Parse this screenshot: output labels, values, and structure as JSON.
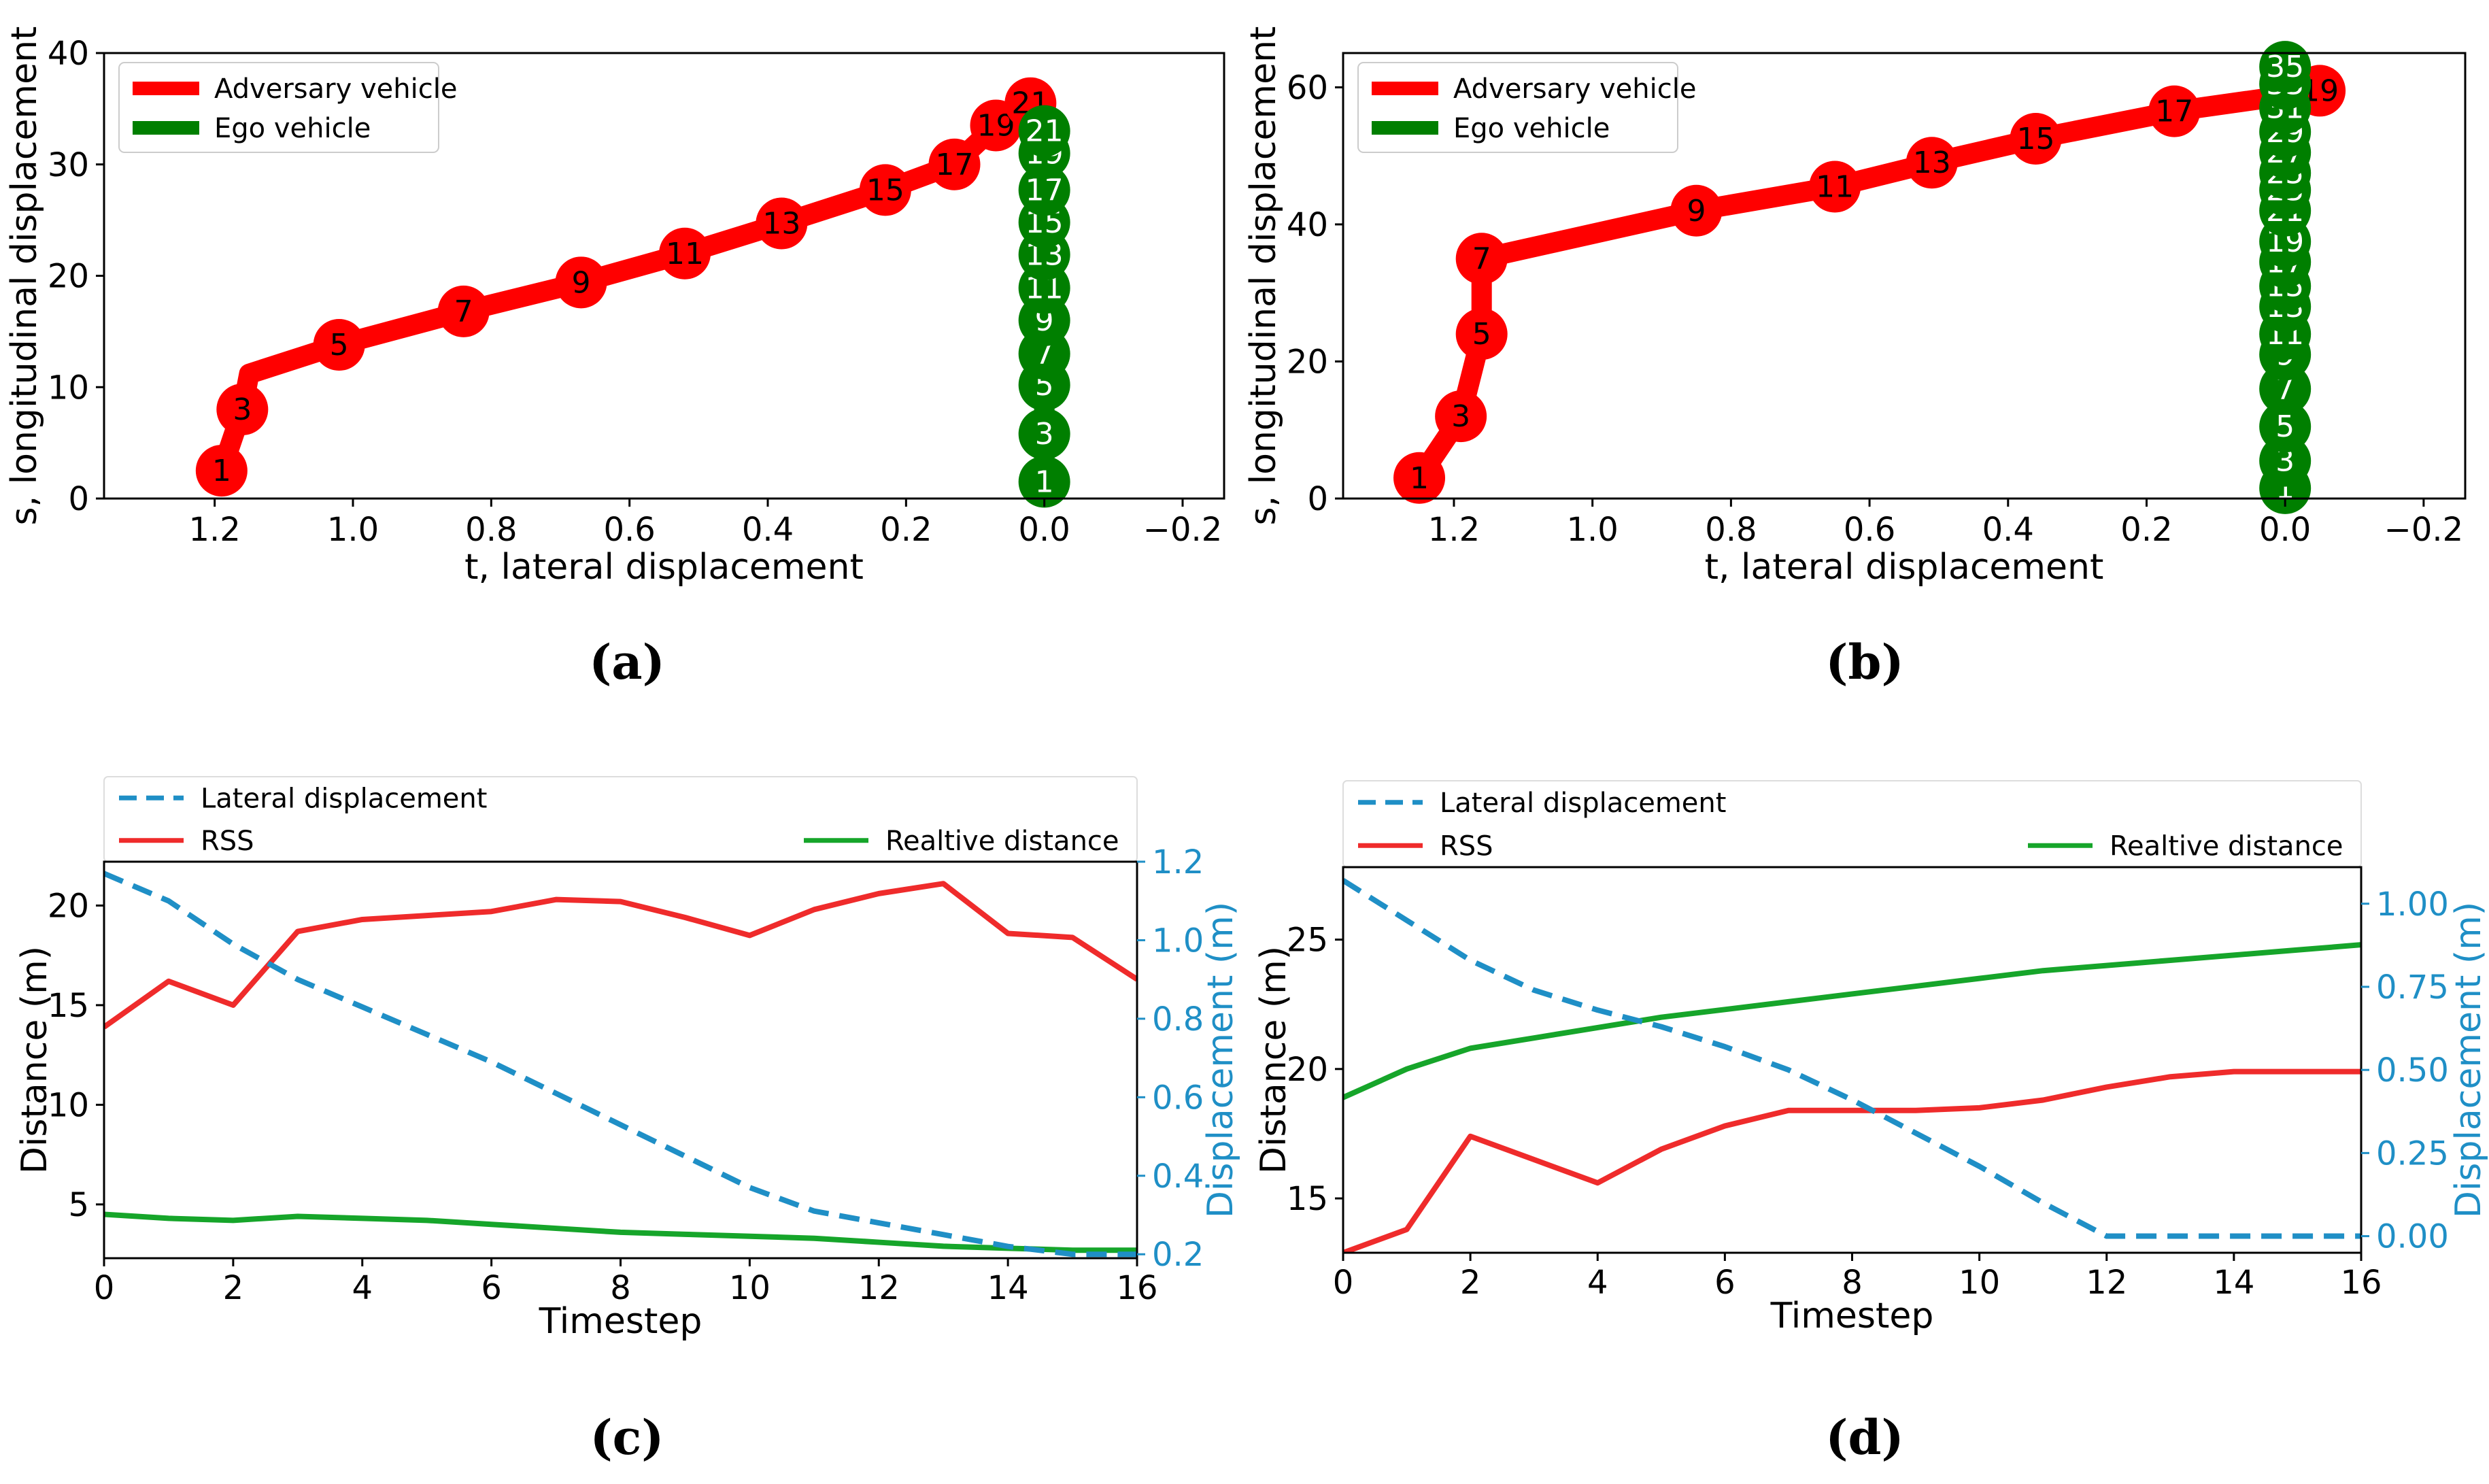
{
  "colors": {
    "adversary": "#ff0000",
    "ego": "#007f00",
    "lateral": "#1f8fc6",
    "rss": "#ef2b2b",
    "relative": "#16a52a",
    "axis": "#000000",
    "twin_axis": "#1f8fc6"
  },
  "chart_data": [
    {
      "panel_label": "(a)",
      "type": "scatter",
      "xlabel": "t, lateral displacement",
      "ylabel": "s, longitudinal displacement",
      "xlim": [
        1.36,
        -0.26
      ],
      "ylim": [
        0,
        40
      ],
      "xticks": [
        1.2,
        1.0,
        0.8,
        0.6,
        0.4,
        0.2,
        0.0,
        -0.2
      ],
      "xtick_labels": [
        "1.2",
        "1.0",
        "0.8",
        "0.6",
        "0.4",
        "0.2",
        "0.0",
        "−0.2"
      ],
      "yticks": [
        0,
        10,
        20,
        30,
        40
      ],
      "ytick_labels": [
        "0",
        "10",
        "20",
        "30",
        "40"
      ],
      "legend": [
        "Adversary vehicle",
        "Ego vehicle"
      ],
      "legend_position": "upper-left",
      "series": [
        {
          "name": "Adversary vehicle",
          "path": [
            [
              1.19,
              2.5
            ],
            [
              1.16,
              8.0
            ],
            [
              1.15,
              11.2
            ],
            [
              1.02,
              13.8
            ],
            [
              0.84,
              16.8
            ],
            [
              0.67,
              19.4
            ],
            [
              0.52,
              22.0
            ],
            [
              0.38,
              24.7
            ],
            [
              0.23,
              27.7
            ],
            [
              0.13,
              30.0
            ],
            [
              0.07,
              33.5
            ],
            [
              0.02,
              35.5
            ]
          ],
          "markers": [
            {
              "label": "1",
              "t": 1.19,
              "s": 2.5
            },
            {
              "label": "3",
              "t": 1.16,
              "s": 8.0
            },
            {
              "label": "5",
              "t": 1.02,
              "s": 13.8
            },
            {
              "label": "7",
              "t": 0.84,
              "s": 16.8
            },
            {
              "label": "9",
              "t": 0.67,
              "s": 19.4
            },
            {
              "label": "11",
              "t": 0.52,
              "s": 22.0
            },
            {
              "label": "13",
              "t": 0.38,
              "s": 24.7
            },
            {
              "label": "15",
              "t": 0.23,
              "s": 27.7
            },
            {
              "label": "17",
              "t": 0.13,
              "s": 30.0
            },
            {
              "label": "19",
              "t": 0.07,
              "s": 33.5
            },
            {
              "label": "21",
              "t": 0.02,
              "s": 35.5
            }
          ]
        },
        {
          "name": "Ego vehicle",
          "path": [
            [
              0.0,
              1.5
            ],
            [
              0.0,
              33.0
            ]
          ],
          "markers": [
            {
              "label": "1",
              "t": 0.0,
              "s": 1.5
            },
            {
              "label": "3",
              "t": 0.0,
              "s": 5.8
            },
            {
              "label": "5",
              "t": 0.0,
              "s": 10.2
            },
            {
              "label": "7",
              "t": 0.0,
              "s": 13.0
            },
            {
              "label": "9",
              "t": 0.0,
              "s": 16.0
            },
            {
              "label": "11",
              "t": 0.0,
              "s": 18.9
            },
            {
              "label": "13",
              "t": 0.0,
              "s": 21.9
            },
            {
              "label": "15",
              "t": 0.0,
              "s": 24.8
            },
            {
              "label": "17",
              "t": 0.0,
              "s": 27.7
            },
            {
              "label": "19",
              "t": 0.0,
              "s": 31.0
            },
            {
              "label": "21",
              "t": 0.0,
              "s": 33.0
            }
          ]
        }
      ]
    },
    {
      "panel_label": "(b)",
      "type": "scatter",
      "xlabel": "t, lateral displacement",
      "ylabel": "s, longitudinal displacement",
      "xlim": [
        1.36,
        -0.26
      ],
      "ylim": [
        0,
        65
      ],
      "xticks": [
        1.2,
        1.0,
        0.8,
        0.6,
        0.4,
        0.2,
        0.0,
        -0.2
      ],
      "xtick_labels": [
        "1.2",
        "1.0",
        "0.8",
        "0.6",
        "0.4",
        "0.2",
        "0.0",
        "−0.2"
      ],
      "yticks": [
        0,
        20,
        40,
        60
      ],
      "ytick_labels": [
        "0",
        "20",
        "40",
        "60"
      ],
      "legend": [
        "Adversary vehicle",
        "Ego vehicle"
      ],
      "legend_position": "upper-left",
      "series": [
        {
          "name": "Adversary vehicle",
          "path": [
            [
              1.25,
              3.0
            ],
            [
              1.19,
              12.0
            ],
            [
              1.16,
              24.0
            ],
            [
              1.16,
              35.0
            ],
            [
              0.85,
              42.0
            ],
            [
              0.65,
              45.5
            ],
            [
              0.51,
              49.0
            ],
            [
              0.36,
              52.5
            ],
            [
              0.16,
              56.5
            ],
            [
              -0.05,
              59.5
            ]
          ],
          "markers": [
            {
              "label": "1",
              "t": 1.25,
              "s": 3.0
            },
            {
              "label": "3",
              "t": 1.19,
              "s": 12.0
            },
            {
              "label": "5",
              "t": 1.16,
              "s": 24.0
            },
            {
              "label": "7",
              "t": 1.16,
              "s": 35.0
            },
            {
              "label": "9",
              "t": 0.85,
              "s": 42.0
            },
            {
              "label": "11",
              "t": 0.65,
              "s": 45.5
            },
            {
              "label": "13",
              "t": 0.51,
              "s": 49.0
            },
            {
              "label": "15",
              "t": 0.36,
              "s": 52.5
            },
            {
              "label": "17",
              "t": 0.16,
              "s": 56.5
            },
            {
              "label": "19",
              "t": -0.05,
              "s": 59.5
            }
          ]
        },
        {
          "name": "Ego vehicle",
          "path": [
            [
              0.0,
              1.5
            ],
            [
              0.0,
              63.0
            ]
          ],
          "markers": [
            {
              "label": "1",
              "t": 0.0,
              "s": 1.5
            },
            {
              "label": "3",
              "t": 0.0,
              "s": 5.5
            },
            {
              "label": "5",
              "t": 0.0,
              "s": 10.5
            },
            {
              "label": "7",
              "t": 0.0,
              "s": 16.0
            },
            {
              "label": "9",
              "t": 0.0,
              "s": 21.0
            },
            {
              "label": "11",
              "t": 0.0,
              "s": 24.0
            },
            {
              "label": "13",
              "t": 0.0,
              "s": 28.0
            },
            {
              "label": "15",
              "t": 0.0,
              "s": 31.0
            },
            {
              "label": "17",
              "t": 0.0,
              "s": 34.5
            },
            {
              "label": "19",
              "t": 0.0,
              "s": 37.5
            },
            {
              "label": "21",
              "t": 0.0,
              "s": 42.0
            },
            {
              "label": "23",
              "t": 0.0,
              "s": 45.0
            },
            {
              "label": "25",
              "t": 0.0,
              "s": 47.5
            },
            {
              "label": "27",
              "t": 0.0,
              "s": 50.5
            },
            {
              "label": "29",
              "t": 0.0,
              "s": 53.5
            },
            {
              "label": "31",
              "t": 0.0,
              "s": 57.0
            },
            {
              "label": "33",
              "t": 0.0,
              "s": 60.5
            },
            {
              "label": "35",
              "t": 0.0,
              "s": 63.0
            }
          ]
        }
      ]
    },
    {
      "panel_label": "(c)",
      "type": "line",
      "xlabel": "Timestep",
      "ylabel": "Distance (m)",
      "y2label": "Displacement (m)",
      "xlim": [
        0,
        16
      ],
      "ylim": [
        2.3,
        22.2
      ],
      "y2lim": [
        0.19,
        1.2
      ],
      "xticks": [
        0,
        2,
        4,
        6,
        8,
        10,
        12,
        14,
        16
      ],
      "xtick_labels": [
        "0",
        "2",
        "4",
        "6",
        "8",
        "10",
        "12",
        "14",
        "16"
      ],
      "yticks": [
        5,
        10,
        15,
        20
      ],
      "ytick_labels": [
        "5",
        "10",
        "15",
        "20"
      ],
      "y2ticks": [
        0.2,
        0.4,
        0.6,
        0.8,
        1.0,
        1.2
      ],
      "y2tick_labels": [
        "0.2",
        "0.4",
        "0.6",
        "0.8",
        "1.0",
        "1.2"
      ],
      "legend": [
        "Lateral displacement",
        "RSS",
        "Realtive distance"
      ],
      "x": [
        0,
        1,
        2,
        3,
        4,
        5,
        6,
        7,
        8,
        9,
        10,
        11,
        12,
        13,
        14,
        15,
        16
      ],
      "series": [
        {
          "name": "Lateral displacement",
          "axis": "right",
          "style": "dashed",
          "values": [
            1.17,
            1.1,
            0.99,
            0.9,
            0.83,
            0.76,
            0.69,
            0.61,
            0.53,
            0.45,
            0.37,
            0.31,
            0.28,
            0.25,
            0.22,
            0.2,
            0.2
          ]
        },
        {
          "name": "RSS",
          "axis": "left",
          "style": "solid",
          "values": [
            13.9,
            16.2,
            15.0,
            18.7,
            19.3,
            19.5,
            19.7,
            20.3,
            20.2,
            19.4,
            18.5,
            19.8,
            20.6,
            21.1,
            18.6,
            18.4,
            16.3
          ]
        },
        {
          "name": "Realtive distance",
          "axis": "left",
          "style": "solid",
          "values": [
            4.5,
            4.3,
            4.2,
            4.4,
            4.3,
            4.2,
            4.0,
            3.8,
            3.6,
            3.5,
            3.4,
            3.3,
            3.1,
            2.9,
            2.8,
            2.7,
            2.7
          ]
        }
      ]
    },
    {
      "panel_label": "(d)",
      "type": "line",
      "xlabel": "Timestep",
      "ylabel": "Distance (m)",
      "y2label": "Displacement (m)",
      "xlim": [
        0,
        16
      ],
      "ylim": [
        12.9,
        27.8
      ],
      "y2lim": [
        -0.05,
        1.11
      ],
      "xticks": [
        0,
        2,
        4,
        6,
        8,
        10,
        12,
        14,
        16
      ],
      "xtick_labels": [
        "0",
        "2",
        "4",
        "6",
        "8",
        "10",
        "12",
        "14",
        "16"
      ],
      "yticks": [
        15,
        20,
        25
      ],
      "ytick_labels": [
        "15",
        "20",
        "25"
      ],
      "y2ticks": [
        0.0,
        0.25,
        0.5,
        0.75,
        1.0
      ],
      "y2tick_labels": [
        "0.00",
        "0.25",
        "0.50",
        "0.75",
        "1.00"
      ],
      "legend": [
        "Lateral displacement",
        "RSS",
        "Realtive distance"
      ],
      "x": [
        0,
        1,
        2,
        3,
        4,
        5,
        6,
        7,
        8,
        9,
        10,
        11,
        12,
        13,
        14,
        15,
        16
      ],
      "series": [
        {
          "name": "Lateral displacement",
          "axis": "right",
          "style": "dashed",
          "values": [
            1.07,
            0.95,
            0.83,
            0.74,
            0.68,
            0.63,
            0.57,
            0.5,
            0.41,
            0.31,
            0.21,
            0.1,
            0.0,
            0.0,
            0.0,
            0.0,
            0.0
          ]
        },
        {
          "name": "RSS",
          "axis": "left",
          "style": "solid",
          "values": [
            12.9,
            13.8,
            17.4,
            16.5,
            15.6,
            16.9,
            17.8,
            18.4,
            18.4,
            18.4,
            18.5,
            18.8,
            19.3,
            19.7,
            19.9,
            19.9,
            19.9
          ]
        },
        {
          "name": "Realtive distance",
          "axis": "left",
          "style": "solid",
          "values": [
            18.9,
            20.0,
            20.8,
            21.2,
            21.6,
            22.0,
            22.3,
            22.6,
            22.9,
            23.2,
            23.5,
            23.8,
            24.0,
            24.2,
            24.4,
            24.6,
            24.8
          ]
        }
      ]
    }
  ]
}
